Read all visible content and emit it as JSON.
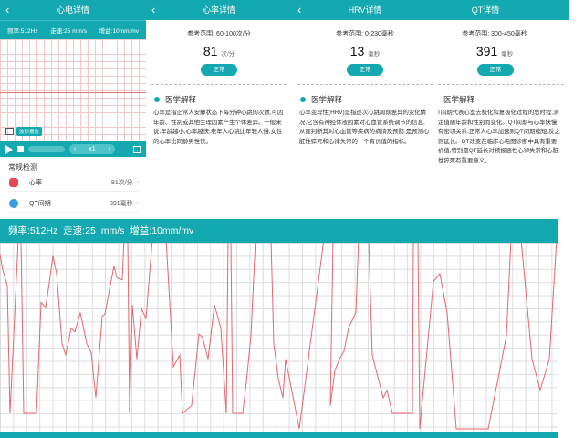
{
  "ecg_panel": {
    "title": "心电详情",
    "freq": "频率:512Hz",
    "speed": "走速:25 mm/s",
    "gain": "增益:10mm/mv",
    "report_button": "波形报告",
    "playback_speed": "x1",
    "section_title": "常规检测",
    "items": [
      {
        "label": "心率",
        "value": "81次/分",
        "icon": "heart-icon",
        "color": "#e8475a"
      },
      {
        "label": "QT间期",
        "value": "391毫秒",
        "icon": "clock-icon",
        "color": "#3a9be0"
      }
    ]
  },
  "detail_panels": [
    {
      "title": "心率详情",
      "range": "参考范围: 60-100次/分",
      "value": "81",
      "unit": "次/分",
      "status": "正常",
      "explain_title": "医学解释",
      "explain": "心率是指正常人安静状态下每分钟心跳的次数,可因年龄、性别或其他生理因素产生个体差异。一般来说,年龄越小,心率越快,老年人心跳比年轻人慢,女性的心率比同龄男性快。"
    },
    {
      "title": "HRV详情",
      "range": "参考范围: 0-230毫秒",
      "value": "13",
      "unit": "毫秒",
      "status": "正常",
      "explain_title": "医学解释",
      "explain": "心率变异性(HRV)是指逐次心跳周期差异的变化情况,它含有神经体液因素对心血管系统调节的信息,从而判断其对心血管等疾病的病情及预防,是预测心脏性猝死和心律失常的一个有价值的指标。"
    },
    {
      "title": "QT详情",
      "range": "参考范围: 300-450毫秒",
      "value": "391",
      "unit": "毫秒",
      "status": "正常",
      "explain_title": "医学解释",
      "explain": "QT间期代表心室去极化和复极化过程的总时程,测定值随年龄和性别而变化。QT间期与心率快慢有密切关系,正常人心率加速则QT间期缩短,反之则延长。QT改变在临床心电图诊断中具有重要价值,特别是QT延长对预报恶性心律失常和心脏性猝死有重要意义。"
    }
  ],
  "fullscreen_ecg": {
    "header": "频率:512Hz  走速:25 mm/s  增益:10mm/mv",
    "trace_color": "#e06a72",
    "accent": "#14a9b0"
  }
}
